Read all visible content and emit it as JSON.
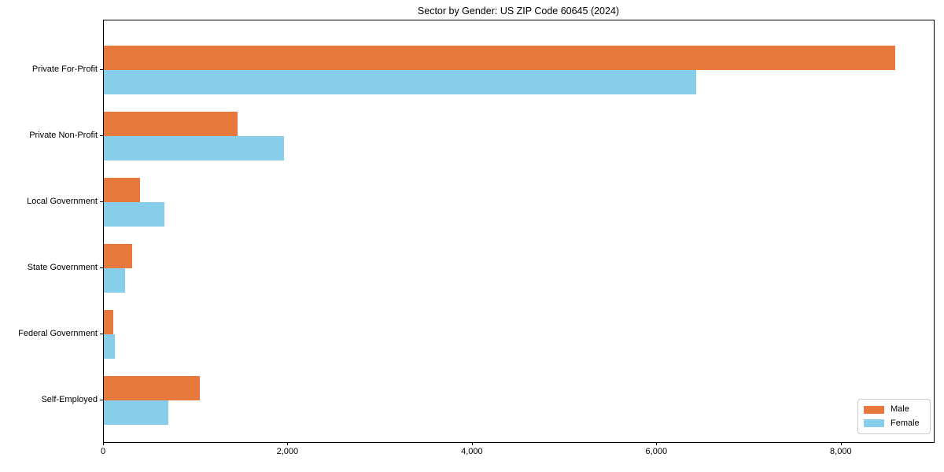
{
  "chart_data": {
    "type": "bar",
    "orientation": "horizontal",
    "title": "Sector by Gender: US ZIP Code 60645 (2024)",
    "categories": [
      "Private For-Profit",
      "Private Non-Profit",
      "Local Government",
      "State Government",
      "Federal Government",
      "Self-Employed"
    ],
    "series": [
      {
        "name": "Male",
        "color": "#E8793D",
        "values": [
          8580,
          1450,
          390,
          310,
          100,
          1040
        ]
      },
      {
        "name": "Female",
        "color": "#87CEEB",
        "values": [
          6420,
          1950,
          660,
          230,
          120,
          695
        ]
      }
    ],
    "xlabel": "",
    "ylabel": "",
    "xlim": [
      0,
      9000
    ],
    "xticks": [
      {
        "value": 0,
        "label": "0"
      },
      {
        "value": 2000,
        "label": "2,000"
      },
      {
        "value": 4000,
        "label": "4,000"
      },
      {
        "value": 6000,
        "label": "6,000"
      },
      {
        "value": 8000,
        "label": "8,000"
      }
    ],
    "grid": false,
    "legend_position": "lower right"
  }
}
